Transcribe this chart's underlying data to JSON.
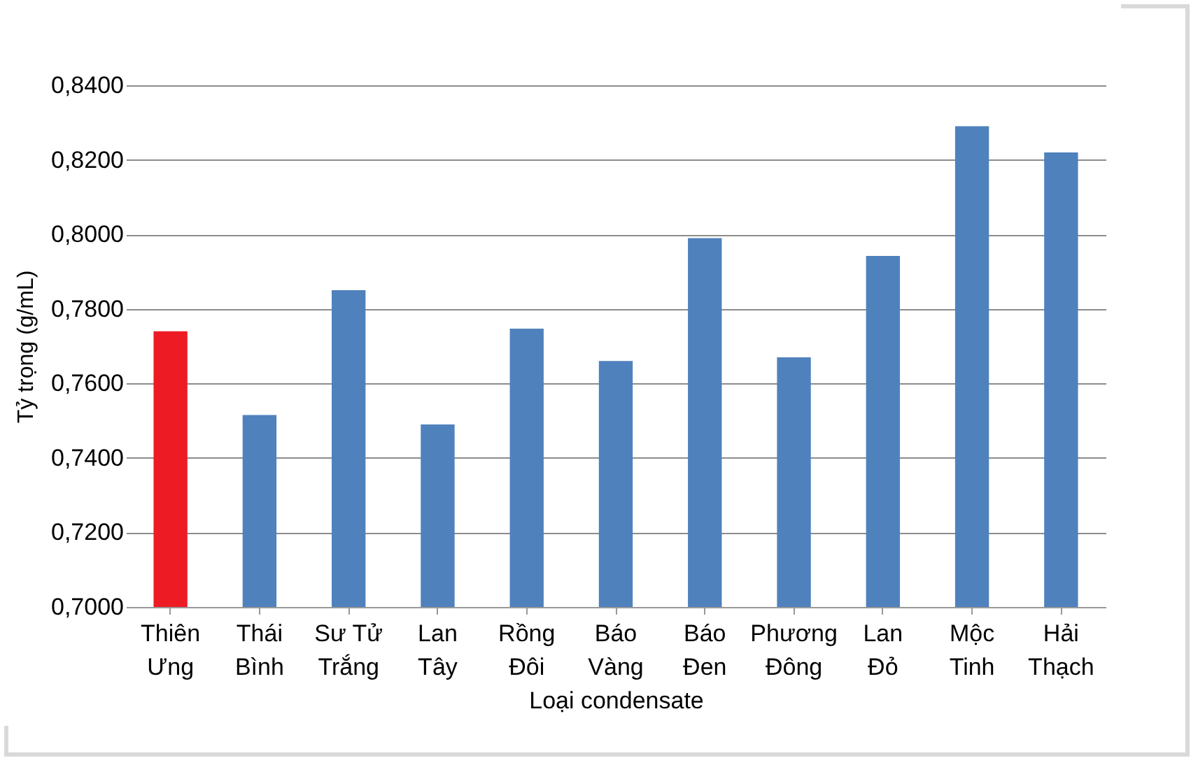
{
  "chart_data": {
    "type": "bar",
    "xlabel": "Loại condensate",
    "ylabel": "Tỷ trọng (g/mL)",
    "categories": [
      "Thiên Ưng",
      "Thái Bình",
      "Sư Tử Trắng",
      "Lan Tây",
      "Rồng Đôi",
      "Báo Vàng",
      "Báo Đen",
      "Phương Đông",
      "Lan Đỏ",
      "Mộc Tinh",
      "Hải Thạch"
    ],
    "values": [
      0.774,
      0.7515,
      0.785,
      0.749,
      0.7747,
      0.766,
      0.799,
      0.767,
      0.7942,
      0.829,
      0.822
    ],
    "colors": [
      "#ed1c24",
      "#4f81bd",
      "#4f81bd",
      "#4f81bd",
      "#4f81bd",
      "#4f81bd",
      "#4f81bd",
      "#4f81bd",
      "#4f81bd",
      "#4f81bd",
      "#4f81bd"
    ],
    "ylim": [
      0.7,
      0.84
    ],
    "yticks": [
      {
        "value": 0.7,
        "label": "0,7000"
      },
      {
        "value": 0.72,
        "label": "0,7200"
      },
      {
        "value": 0.74,
        "label": "0,7400"
      },
      {
        "value": 0.76,
        "label": "0,7600"
      },
      {
        "value": 0.78,
        "label": "0,7800"
      },
      {
        "value": 0.8,
        "label": "0,8000"
      },
      {
        "value": 0.82,
        "label": "0,8200"
      },
      {
        "value": 0.84,
        "label": "0,8400"
      }
    ],
    "grid": "y"
  }
}
